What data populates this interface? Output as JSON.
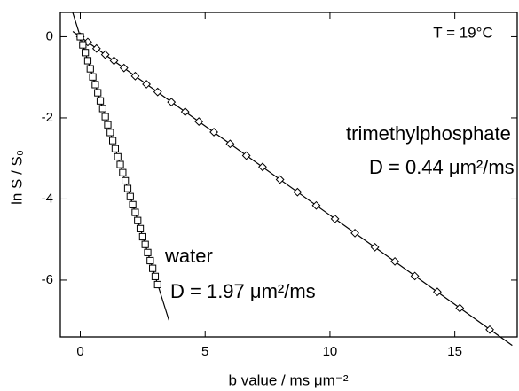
{
  "chart_data": {
    "type": "scatter",
    "x_label": "b value  /  ms μm⁻²",
    "y_label": "ln S / S₀",
    "annotations": [
      "T = 19°C",
      "trimethylphosphate",
      "D = 0.44 μm²/ms",
      "water",
      "D = 1.97 μm²/ms"
    ],
    "xlim": [
      -0.8,
      17.5
    ],
    "ylim": [
      -7.4,
      0.6
    ],
    "xticks": [
      0,
      5,
      10,
      15
    ],
    "yticks": [
      0,
      -2,
      -4,
      -6
    ],
    "series": [
      {
        "marker": "diamond",
        "color": "#000000",
        "x": [
          0,
          0.3,
          0.65,
          1.0,
          1.35,
          1.75,
          2.2,
          2.65,
          3.1,
          3.65,
          4.2,
          4.75,
          5.35,
          6.0,
          6.65,
          7.3,
          8.0,
          8.7,
          9.45,
          10.2,
          11.0,
          11.8,
          12.6,
          13.4,
          14.3,
          15.2,
          16.4
        ],
        "values": [
          0,
          -0.13,
          -0.29,
          -0.44,
          -0.59,
          -0.77,
          -0.97,
          -1.17,
          -1.36,
          -1.61,
          -1.85,
          -2.09,
          -2.35,
          -2.64,
          -2.93,
          -3.21,
          -3.52,
          -3.83,
          -4.16,
          -4.49,
          -4.84,
          -5.19,
          -5.54,
          -5.9,
          -6.29,
          -6.69,
          -7.22
        ]
      },
      {
        "marker": "square",
        "color": "#000000",
        "x": [
          0,
          0.1,
          0.2,
          0.3,
          0.4,
          0.5,
          0.6,
          0.7,
          0.8,
          0.9,
          1.0,
          1.1,
          1.2,
          1.3,
          1.4,
          1.5,
          1.6,
          1.7,
          1.8,
          1.9,
          2.0,
          2.1,
          2.2,
          2.3,
          2.4,
          2.5,
          2.6,
          2.7,
          2.8,
          2.9,
          3.0,
          3.1
        ],
        "values": [
          0,
          -0.2,
          -0.39,
          -0.59,
          -0.79,
          -0.99,
          -1.18,
          -1.38,
          -1.58,
          -1.77,
          -1.97,
          -2.17,
          -2.36,
          -2.56,
          -2.76,
          -2.96,
          -3.15,
          -3.35,
          -3.55,
          -3.74,
          -3.94,
          -4.14,
          -4.33,
          -4.53,
          -4.73,
          -4.93,
          -5.12,
          -5.32,
          -5.52,
          -5.71,
          -5.91,
          -6.11
        ]
      }
    ],
    "fits": [
      {
        "color": "#000000",
        "x": [
          -0.3,
          17.3
        ],
        "values": [
          0.13,
          -7.61
        ]
      },
      {
        "color": "#000000",
        "x": [
          -0.3,
          3.55
        ],
        "values": [
          0.59,
          -6.99
        ]
      }
    ]
  }
}
